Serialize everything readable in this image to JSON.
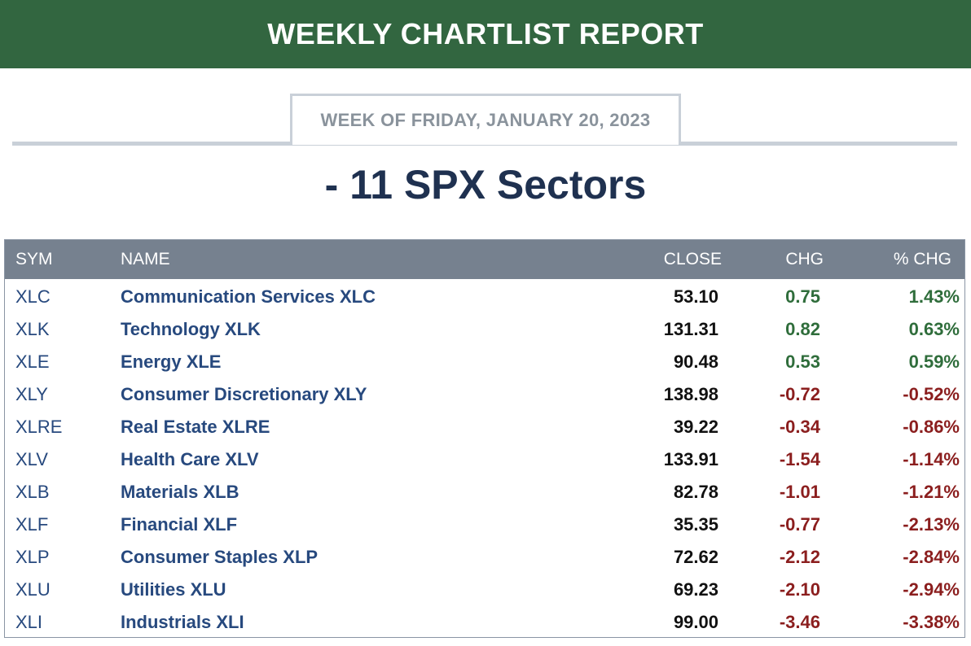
{
  "header": {
    "title": "WEEKLY CHARTLIST REPORT"
  },
  "week_label": "WEEK OF FRIDAY, JANUARY 20, 2023",
  "section_title": "- 11 SPX Sectors",
  "colors": {
    "banner": "#326640",
    "positive": "#2f6d3b",
    "negative": "#8b1e1e",
    "link": "#27497e",
    "header_row": "#76818f"
  },
  "table": {
    "columns": [
      "SYM",
      "NAME",
      "CLOSE",
      "CHG",
      "% CHG"
    ],
    "rows": [
      {
        "sym": "XLC",
        "name": "Communication Services XLC",
        "close": "53.10",
        "chg": "0.75",
        "pct": "1.43%",
        "dir": "pos"
      },
      {
        "sym": "XLK",
        "name": "Technology XLK",
        "close": "131.31",
        "chg": "0.82",
        "pct": "0.63%",
        "dir": "pos"
      },
      {
        "sym": "XLE",
        "name": "Energy XLE",
        "close": "90.48",
        "chg": "0.53",
        "pct": "0.59%",
        "dir": "pos"
      },
      {
        "sym": "XLY",
        "name": "Consumer Discretionary XLY",
        "close": "138.98",
        "chg": "-0.72",
        "pct": "-0.52%",
        "dir": "neg"
      },
      {
        "sym": "XLRE",
        "name": "Real Estate XLRE",
        "close": "39.22",
        "chg": "-0.34",
        "pct": "-0.86%",
        "dir": "neg"
      },
      {
        "sym": "XLV",
        "name": "Health Care XLV",
        "close": "133.91",
        "chg": "-1.54",
        "pct": "-1.14%",
        "dir": "neg"
      },
      {
        "sym": "XLB",
        "name": "Materials XLB",
        "close": "82.78",
        "chg": "-1.01",
        "pct": "-1.21%",
        "dir": "neg"
      },
      {
        "sym": "XLF",
        "name": "Financial XLF",
        "close": "35.35",
        "chg": "-0.77",
        "pct": "-2.13%",
        "dir": "neg"
      },
      {
        "sym": "XLP",
        "name": "Consumer Staples XLP",
        "close": "72.62",
        "chg": "-2.12",
        "pct": "-2.84%",
        "dir": "neg"
      },
      {
        "sym": "XLU",
        "name": "Utilities XLU",
        "close": "69.23",
        "chg": "-2.10",
        "pct": "-2.94%",
        "dir": "neg"
      },
      {
        "sym": "XLI",
        "name": "Industrials XLI",
        "close": "99.00",
        "chg": "-3.46",
        "pct": "-3.38%",
        "dir": "neg"
      }
    ]
  }
}
